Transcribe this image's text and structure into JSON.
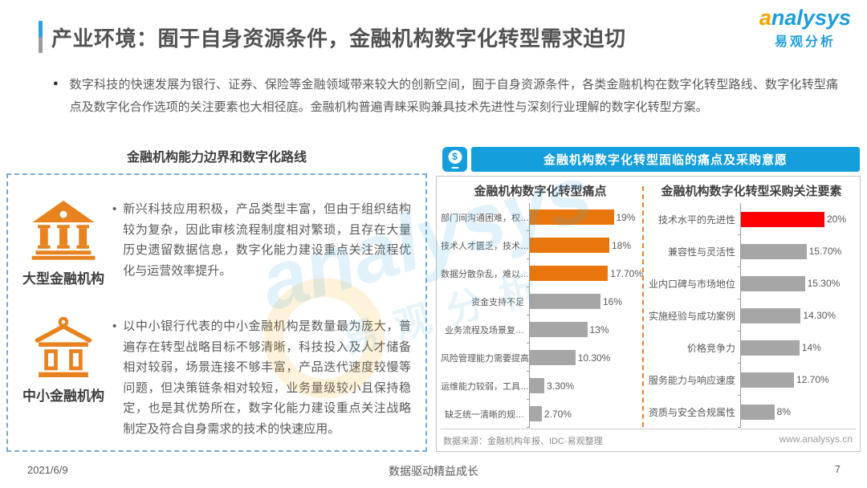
{
  "page": {
    "title": "产业环境：囿于自身资源条件，金融机构数字化转型需求迫切",
    "bullet_glyph": "●",
    "intro": "数字科技的快速发展为银行、证券、保险等金融领域带来较大的创新空间，囿于自身资源条件，各类金融机构在数字化转型路线、数字化转型痛点及数字化合作选项的关注要素也大相径庭。金融机构普遍青睐采购兼具技术先进性与深刻行业理解的数字化转型方案。",
    "footer": {
      "date": "2021/6/9",
      "slogan": "数据驱动精益成长",
      "page_number": "7"
    }
  },
  "logo": {
    "brand": "analysys",
    "brand_cn": "易观分析"
  },
  "watermark": {
    "brand": "analysys",
    "cn": "易观分析"
  },
  "left_panel": {
    "title": "金融机构能力边界和数字化路线",
    "item_bullet": "•",
    "items": [
      {
        "icon": "bank-large-icon",
        "label": "大型金融机构",
        "text": "新兴科技应用积极，产品类型丰富，但由于组织结构较为复杂，因此审核流程制度相对繁琐，且存在大量历史遗留数据信息，数字化能力建设重点关注流程优化与运营效率提升。"
      },
      {
        "icon": "bank-small-icon",
        "label": "中小金融机构",
        "text": "以中小银行代表的中小金融机构是数量最为庞大，普遍存在转型战略目标不够清晰，科技投入及人才储备相对较弱，场景连接不够丰富，产品迭代速度较慢等问题，但决策链条相对较短，业务量级较小且保持稳定，也是其优势所在，数字化能力建设重点关注战略制定及符合自身需求的技术的快速应用。"
      }
    ]
  },
  "right_panel": {
    "header": "金融机构数字化转型面临的痛点及采购意愿",
    "header_icon": "mobile-payment-icon",
    "money_symbol": "$",
    "source": "数据来源：金融机构年报、IDC·易观整理",
    "website": "www.analysys.cn"
  },
  "chart_data": [
    {
      "type": "bar",
      "orientation": "horizontal",
      "title": "金融机构数字化转型痛点",
      "categories": [
        "部门间沟通困难，权…",
        "技术人才匮乏，技术…",
        "数据分散杂乱，难以…",
        "资金支持不足",
        "业务流程及场景复…",
        "风险管理能力需要提高",
        "运维能力较弱，工具…",
        "缺乏统一清晰的规…"
      ],
      "values": [
        19,
        18,
        17.7,
        16,
        13,
        10.3,
        3.3,
        2.7
      ],
      "value_labels": [
        "19%",
        "18%",
        "17.70%",
        "16%",
        "13%",
        "10.30%",
        "3.30%",
        "2.70%"
      ],
      "bar_colors": [
        "#e8760c",
        "#e8760c",
        "#e8760c",
        "#a6a6a6",
        "#a6a6a6",
        "#a6a6a6",
        "#a6a6a6",
        "#a6a6a6"
      ],
      "xlim": [
        0,
        20
      ],
      "grid": false,
      "legend": "none"
    },
    {
      "type": "bar",
      "orientation": "horizontal",
      "title": "金融机构数字化转型采购关注要素",
      "categories": [
        "技术水平的先进性",
        "兼容性与灵活性",
        "业内口碑与市场地位",
        "实施经验与成功案例",
        "价格竞争力",
        "服务能力与响应速度",
        "资质与安全合规属性"
      ],
      "values": [
        20,
        15.7,
        15.3,
        14.3,
        14,
        12.7,
        8
      ],
      "value_labels": [
        "20%",
        "15.70%",
        "15.30%",
        "14.30%",
        "14%",
        "12.70%",
        "8%"
      ],
      "bar_colors": [
        "#fe0000",
        "#a6a6a6",
        "#a6a6a6",
        "#a6a6a6",
        "#a6a6a6",
        "#a6a6a6",
        "#a6a6a6"
      ],
      "xlim": [
        0,
        20
      ],
      "grid": false,
      "legend": "none"
    }
  ],
  "colors": {
    "brand_blue": "#149edc",
    "brand_orange": "#e8821e",
    "bar_orange": "#e8760c",
    "bar_red": "#fe0000",
    "bar_gray": "#a6a6a6",
    "dashed_box_blue": "#74a9d8"
  }
}
